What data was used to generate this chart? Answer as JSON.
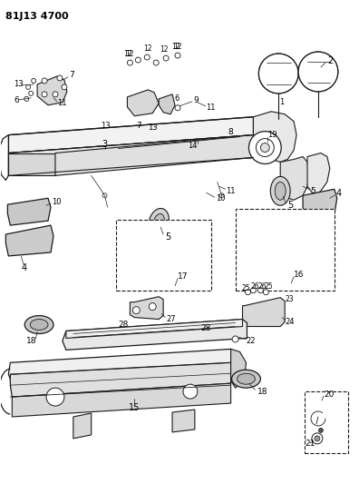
{
  "title": "81J13 4700",
  "bg_color": "#ffffff",
  "line_color": "#1a1a1a",
  "text_color": "#000000",
  "fig_width": 3.96,
  "fig_height": 5.33,
  "dpi": 100
}
